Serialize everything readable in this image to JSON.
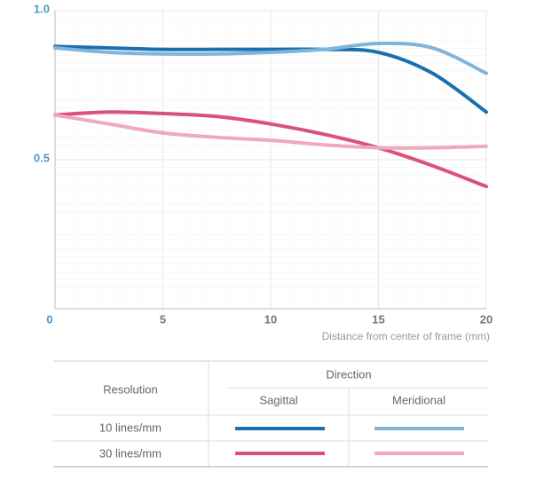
{
  "chart_data": {
    "type": "line",
    "x_label": "Distance from center of frame (mm)",
    "x": [
      0,
      2.5,
      5,
      7.5,
      10,
      12.5,
      15,
      17.5,
      20
    ],
    "xlim": [
      0,
      20
    ],
    "xticks": [
      0,
      5,
      10,
      15,
      20
    ],
    "ylim": [
      0,
      1
    ],
    "yticks": [
      0.5,
      {
        "value": 1,
        "label": "1.0"
      }
    ],
    "grid": true,
    "series": [
      {
        "color": "#1a6fae",
        "values": [
          0.88,
          0.875,
          0.87,
          0.87,
          0.87,
          0.87,
          0.86,
          0.79,
          0.66
        ]
      },
      {
        "color": "#7fb5dc",
        "values": [
          0.875,
          0.86,
          0.855,
          0.855,
          0.86,
          0.87,
          0.89,
          0.875,
          0.79
        ]
      },
      {
        "color": "#d9527a",
        "values": [
          0.65,
          0.66,
          0.655,
          0.645,
          0.62,
          0.585,
          0.54,
          0.48,
          0.41
        ]
      },
      {
        "color": "#eeaabb",
        "values": [
          0.65,
          0.62,
          0.59,
          0.575,
          0.565,
          0.55,
          0.54,
          0.54,
          0.545
        ]
      }
    ]
  },
  "legend": {
    "row_header": "Resolution",
    "column_group": "Direction",
    "columns": [
      "Sagittal",
      "Meridional"
    ],
    "rows": [
      "10 lines/mm",
      "30 lines/mm"
    ]
  }
}
